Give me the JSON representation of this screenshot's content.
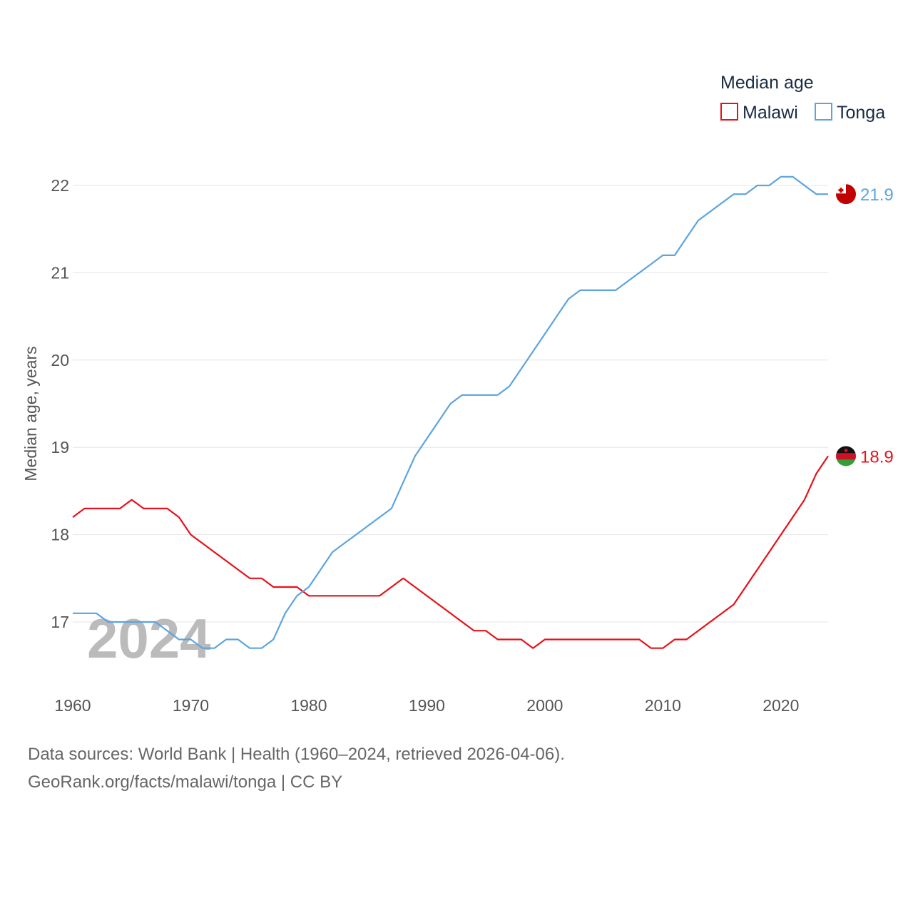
{
  "chart_data": {
    "type": "line",
    "title": "",
    "xlabel": "",
    "ylabel": "Median age, years",
    "xlim": [
      1960,
      2024
    ],
    "ylim": [
      16.3,
      22.5
    ],
    "x_ticks": [
      1960,
      1970,
      1980,
      1990,
      2000,
      2010,
      2020
    ],
    "y_ticks": [
      17,
      18,
      19,
      20,
      21,
      22
    ],
    "grid": true,
    "legend": {
      "title": "Median age",
      "position": "top-right"
    },
    "watermark_year": "2024",
    "x": [
      1960,
      1961,
      1962,
      1963,
      1964,
      1965,
      1966,
      1967,
      1968,
      1969,
      1970,
      1971,
      1972,
      1973,
      1974,
      1975,
      1976,
      1977,
      1978,
      1979,
      1980,
      1981,
      1982,
      1983,
      1984,
      1985,
      1986,
      1987,
      1988,
      1989,
      1990,
      1991,
      1992,
      1993,
      1994,
      1995,
      1996,
      1997,
      1998,
      1999,
      2000,
      2001,
      2002,
      2003,
      2004,
      2005,
      2006,
      2007,
      2008,
      2009,
      2010,
      2011,
      2012,
      2013,
      2014,
      2015,
      2016,
      2017,
      2018,
      2019,
      2020,
      2021,
      2022,
      2023,
      2024
    ],
    "series": [
      {
        "name": "Malawi",
        "color": "#e8101a",
        "end_label": "18.9",
        "values": [
          18.2,
          18.3,
          18.3,
          18.3,
          18.3,
          18.4,
          18.3,
          18.3,
          18.3,
          18.2,
          18.0,
          17.9,
          17.8,
          17.7,
          17.6,
          17.5,
          17.5,
          17.4,
          17.4,
          17.4,
          17.3,
          17.3,
          17.3,
          17.3,
          17.3,
          17.3,
          17.3,
          17.4,
          17.5,
          17.4,
          17.3,
          17.2,
          17.1,
          17.0,
          16.9,
          16.9,
          16.8,
          16.8,
          16.8,
          16.7,
          16.8,
          16.8,
          16.8,
          16.8,
          16.8,
          16.8,
          16.8,
          16.8,
          16.8,
          16.7,
          16.7,
          16.8,
          16.8,
          16.9,
          17.0,
          17.1,
          17.2,
          17.4,
          17.6,
          17.8,
          18.0,
          18.2,
          18.4,
          18.7,
          18.9
        ]
      },
      {
        "name": "Tonga",
        "color": "#5ba4e0",
        "end_label": "21.9",
        "values": [
          17.1,
          17.1,
          17.1,
          17.0,
          17.0,
          17.0,
          17.0,
          17.0,
          16.9,
          16.8,
          16.8,
          16.7,
          16.7,
          16.8,
          16.8,
          16.7,
          16.7,
          16.8,
          17.1,
          17.3,
          17.4,
          17.6,
          17.8,
          17.9,
          18.0,
          18.1,
          18.2,
          18.3,
          18.6,
          18.9,
          19.1,
          19.3,
          19.5,
          19.6,
          19.6,
          19.6,
          19.6,
          19.7,
          19.9,
          20.1,
          20.3,
          20.5,
          20.7,
          20.8,
          20.8,
          20.8,
          20.8,
          20.9,
          21.0,
          21.1,
          21.2,
          21.2,
          21.4,
          21.6,
          21.7,
          21.8,
          21.9,
          21.9,
          22.0,
          22.0,
          22.1,
          22.1,
          22.0,
          21.9,
          21.9
        ]
      }
    ]
  },
  "footer": {
    "line1": "Data sources: World Bank | Health (1960–2024, retrieved 2026-04-06).",
    "line2": "GeoRank.org/facts/malawi/tonga | CC BY"
  }
}
